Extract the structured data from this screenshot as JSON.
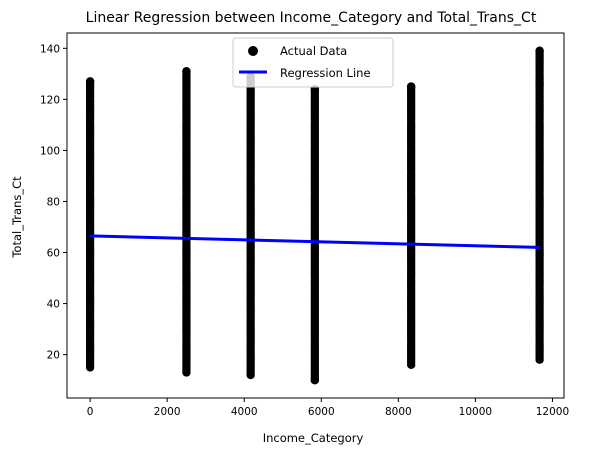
{
  "chart_data": {
    "type": "scatter",
    "title": "Linear Regression between Income_Category and Total_Trans_Ct",
    "xlabel": "Income_Category",
    "ylabel": "Total_Trans_Ct",
    "xlim": [
      -600,
      12300
    ],
    "ylim": [
      3,
      146
    ],
    "xticks": [
      0,
      2000,
      4000,
      6000,
      8000,
      10000,
      12000
    ],
    "yticks": [
      20,
      40,
      60,
      80,
      100,
      120,
      140
    ],
    "grid": false,
    "legend_position": "top-center",
    "point_color": "#000000",
    "line_color": "#0000ff",
    "series": [
      {
        "name": "Actual Data",
        "kind": "scatter",
        "columns": [
          {
            "x": 0,
            "y_min": 15,
            "y_max": 127,
            "outliers": [
              127
            ]
          },
          {
            "x": 2500,
            "y_min": 13,
            "y_max": 131,
            "outliers": [
              131
            ]
          },
          {
            "x": 4167,
            "y_min": 12,
            "y_max": 129,
            "outliers": [
              129
            ]
          },
          {
            "x": 5833,
            "y_min": 10,
            "y_max": 124,
            "outliers": [
              10,
              124
            ]
          },
          {
            "x": 8333,
            "y_min": 16,
            "y_max": 125,
            "outliers": [
              125
            ]
          },
          {
            "x": 11667,
            "y_min": 18,
            "y_max": 139,
            "outliers": [
              139,
              126
            ]
          }
        ]
      },
      {
        "name": "Regression Line",
        "kind": "line",
        "x": [
          0,
          11667
        ],
        "y": [
          66.5,
          62.0
        ]
      }
    ]
  }
}
